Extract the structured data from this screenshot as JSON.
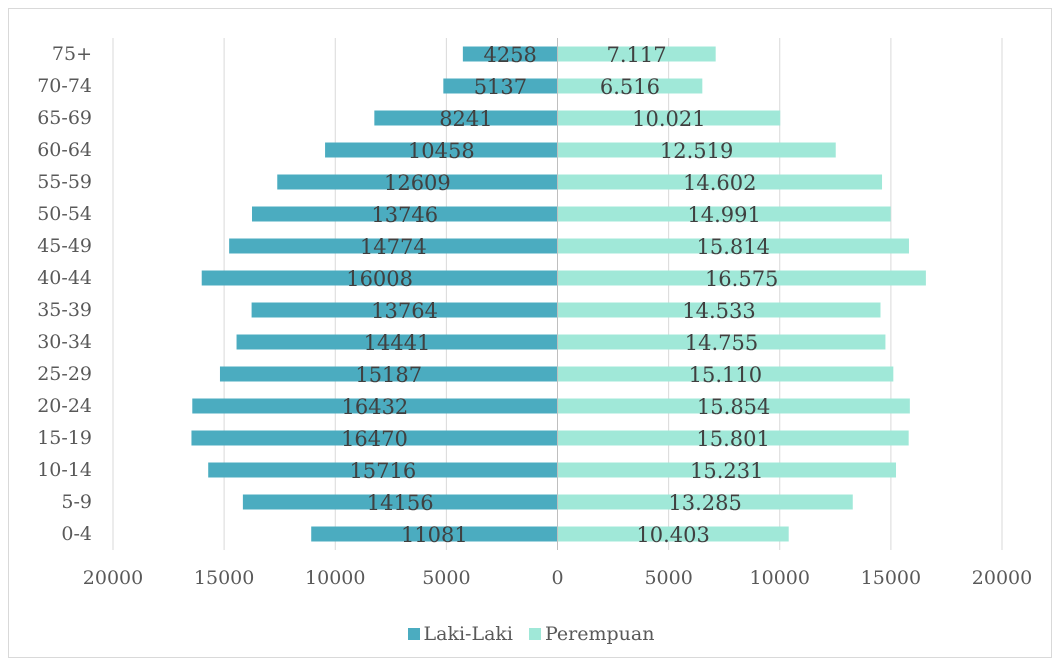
{
  "chart_data": {
    "type": "bar",
    "orientation": "horizontal",
    "categories": [
      "0-4",
      "5-9",
      "10-14",
      "15-19",
      "20-24",
      "25-29",
      "30-34",
      "35-39",
      "40-44",
      "45-49",
      "50-54",
      "55-59",
      "60-64",
      "65-69",
      "70-74",
      "75+"
    ],
    "series": [
      {
        "name": "Laki-Laki",
        "color": "#4bacc0",
        "values": [
          11081,
          14156,
          15716,
          16470,
          16432,
          15187,
          14441,
          13764,
          16008,
          14774,
          13746,
          12609,
          10458,
          8241,
          5137,
          4258
        ],
        "labels": [
          "11081",
          "14156",
          "15716",
          "16470",
          "16432",
          "15187",
          "14441",
          "13764",
          "16008",
          "14774",
          "13746",
          "12609",
          "10458",
          "8241",
          "5137",
          "4258"
        ]
      },
      {
        "name": "Perempuan",
        "color": "#a0e8d8",
        "values": [
          10403,
          13285,
          15231,
          15801,
          15854,
          15110,
          14755,
          14533,
          16575,
          15814,
          14991,
          14602,
          12519,
          10021,
          6516,
          7117
        ],
        "labels": [
          "10.403",
          "13.285",
          "15.231",
          "15.801",
          "15.854",
          "15.110",
          "14.755",
          "14.533",
          "16.575",
          "15.814",
          "14.991",
          "14.602",
          "12.519",
          "10.021",
          "6.516",
          "7.117"
        ]
      }
    ],
    "xticks": [
      "20000",
      "15000",
      "10000",
      "5000",
      "0",
      "5000",
      "10000",
      "15000",
      "20000"
    ],
    "xlim": [
      -20000,
      20000
    ],
    "grid": "vertical",
    "legend_position": "bottom",
    "title": "",
    "xlabel": "",
    "ylabel": ""
  }
}
